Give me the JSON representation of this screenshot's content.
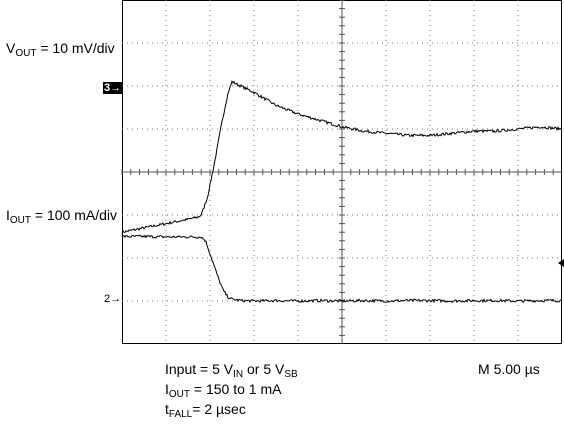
{
  "chart_data": {
    "type": "line",
    "title": "",
    "xlabel": "",
    "ylabel": "",
    "x_unit": "µs",
    "xlim": [
      -12.5,
      37.5
    ],
    "grid": true,
    "grid_divisions": {
      "x": 10,
      "y": 8
    },
    "timebase": {
      "prefix": "M",
      "value": "5.00",
      "unit": "µs"
    },
    "channels": [
      {
        "name": "VOUT",
        "label_main": "V",
        "label_sub": "OUT",
        "label_rest": " = 10 mV/div",
        "marker": "3",
        "ylim": [
          -30,
          50
        ],
        "points": [
          [
            -12.5,
            -4
          ],
          [
            -10,
            -3
          ],
          [
            -7.5,
            -2
          ],
          [
            -5,
            -1
          ],
          [
            -3.9,
            -0.5
          ],
          [
            -3.5,
            0
          ],
          [
            -2.8,
            4
          ],
          [
            -2,
            12
          ],
          [
            -1.2,
            21
          ],
          [
            -0.5,
            28
          ],
          [
            0,
            31
          ],
          [
            1,
            30
          ],
          [
            2.5,
            28.5
          ],
          [
            5,
            25.5
          ],
          [
            7.5,
            23.5
          ],
          [
            10,
            22
          ],
          [
            12.5,
            20.5
          ],
          [
            15,
            19.5
          ],
          [
            17.5,
            19
          ],
          [
            20,
            18.5
          ],
          [
            22.5,
            18.5
          ],
          [
            25,
            19
          ],
          [
            27.5,
            19.5
          ],
          [
            30,
            19.5
          ],
          [
            32.5,
            20
          ],
          [
            35,
            20.5
          ],
          [
            37.5,
            20
          ]
        ]
      },
      {
        "name": "IOUT",
        "label_main": "I",
        "label_sub": "OUT",
        "label_rest": " = 100 mA/div",
        "marker": "2",
        "ylim": [
          -100,
          700
        ],
        "points": [
          [
            -12.5,
            150
          ],
          [
            -10,
            150
          ],
          [
            -7.5,
            149
          ],
          [
            -5,
            149
          ],
          [
            -3.5,
            149
          ],
          [
            -3,
            140
          ],
          [
            -2.5,
            110
          ],
          [
            -2,
            80
          ],
          [
            -1.5,
            50
          ],
          [
            -1,
            25
          ],
          [
            -0.5,
            10
          ],
          [
            0,
            4
          ],
          [
            1,
            1
          ],
          [
            2.5,
            0
          ],
          [
            5,
            1
          ],
          [
            7.5,
            0
          ],
          [
            10,
            1
          ],
          [
            12.5,
            0
          ],
          [
            15,
            1
          ],
          [
            17.5,
            0
          ],
          [
            20,
            1
          ],
          [
            22.5,
            1
          ],
          [
            25,
            0
          ],
          [
            27.5,
            1
          ],
          [
            30,
            1
          ],
          [
            32.5,
            0
          ],
          [
            35,
            1
          ],
          [
            37.5,
            1
          ]
        ]
      }
    ],
    "notes": [
      {
        "main": "Input = 5 V",
        "sub": "IN",
        "rest": " or 5 V",
        "sub2": "SB"
      },
      {
        "main": "I",
        "sub": "OUT",
        "rest": "  = 150 to 1 mA"
      },
      {
        "main": "t",
        "sub": "FALL",
        "rest": "= 2 µsec"
      }
    ]
  }
}
